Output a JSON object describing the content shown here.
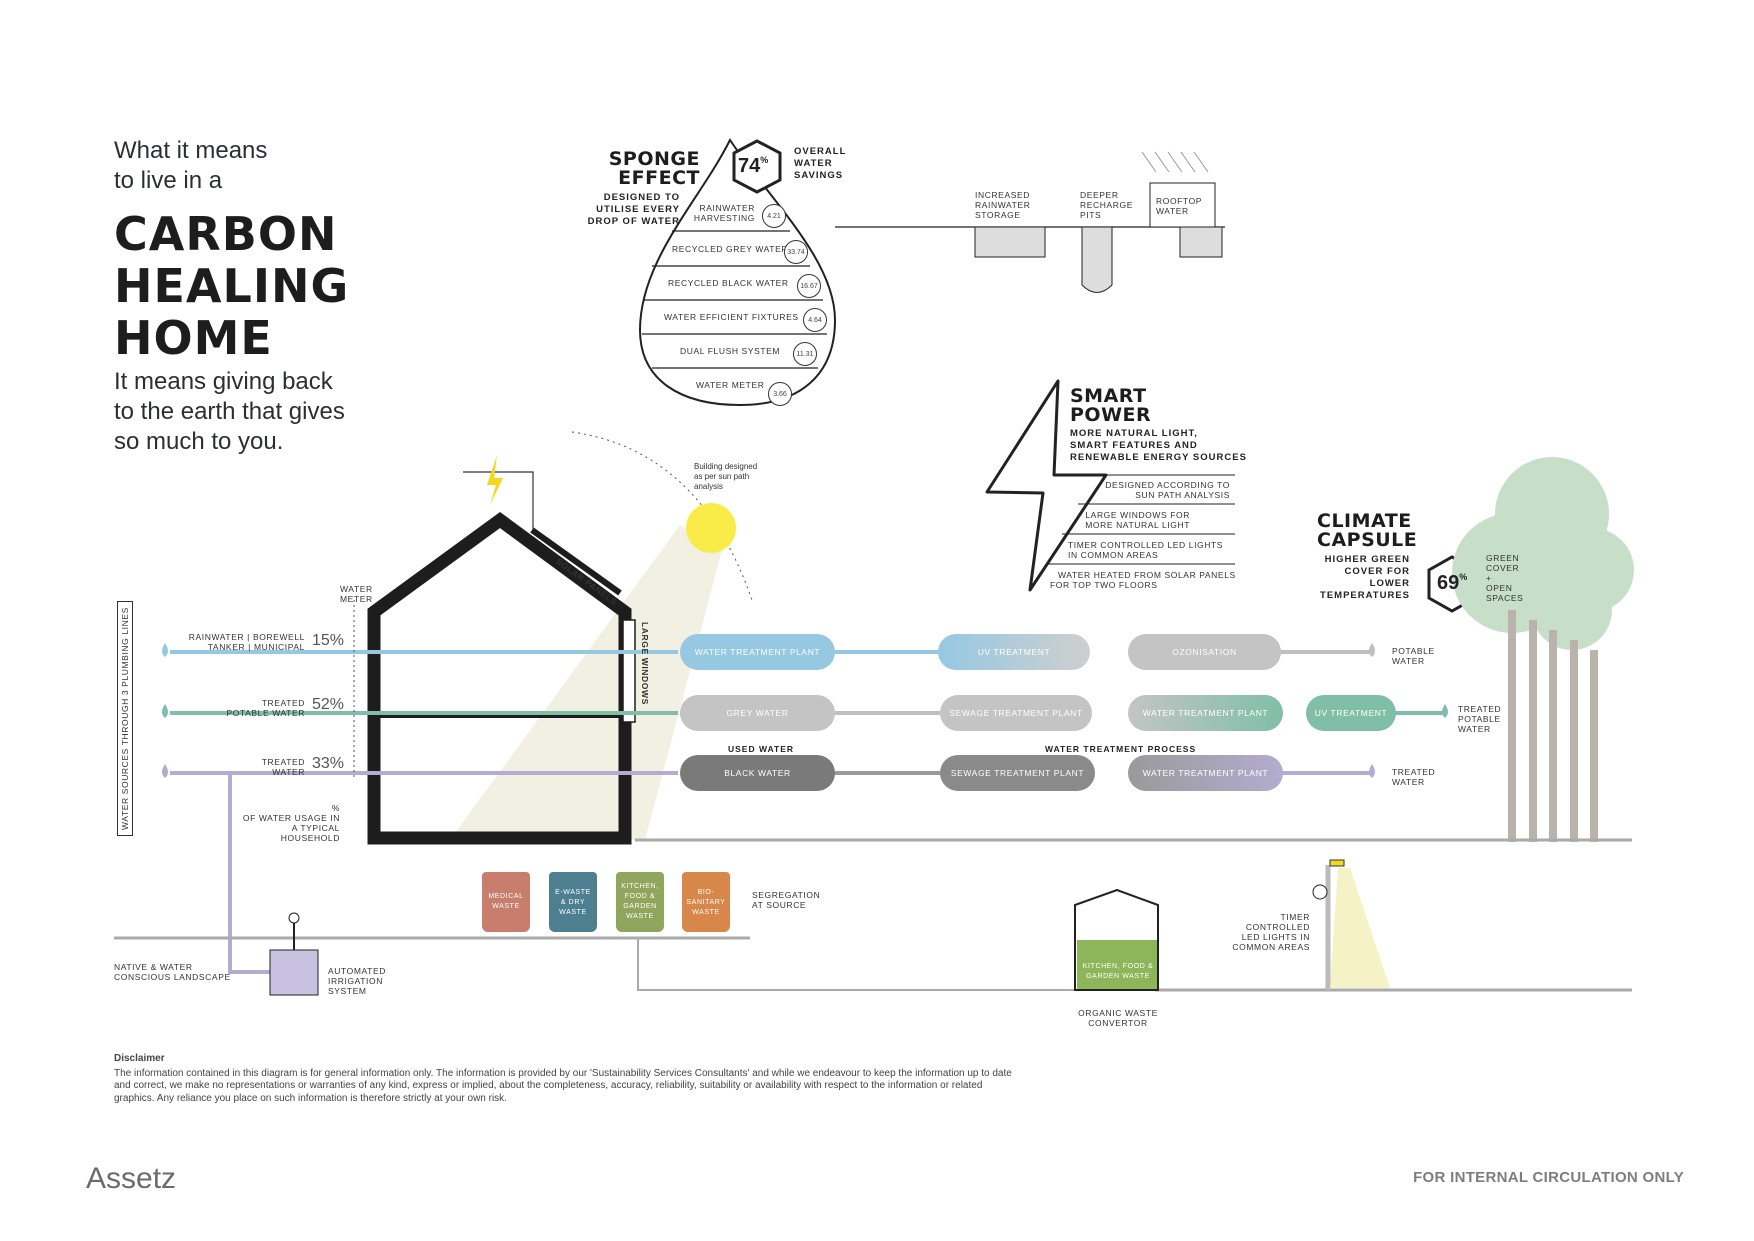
{
  "intro": {
    "line1": "What it means",
    "line2": "to live in a"
  },
  "title": {
    "line1": "CARBON",
    "line2": "HEALING",
    "line3": "HOME"
  },
  "tagline": {
    "line1": "It means giving back",
    "line2": "to the earth that gives",
    "line3": "so much to you."
  },
  "sponge": {
    "title1": "SPONGE",
    "title2": "EFFECT",
    "subtitle": [
      "DESIGNED TO",
      "UTILISE EVERY",
      "DROP OF WATER"
    ],
    "percent": "74",
    "percent_sign": "%",
    "savings": [
      "OVERALL",
      "WATER",
      "SAVINGS"
    ],
    "items": [
      {
        "label": "RAINWATER HARVESTING",
        "value": "4.21"
      },
      {
        "label": "RECYCLED GREY WATER",
        "value": "33.74"
      },
      {
        "label": "RECYCLED BLACK WATER",
        "value": "16.67"
      },
      {
        "label": "WATER EFFICIENT FIXTURES",
        "value": "4.64"
      },
      {
        "label": "DUAL FLUSH SYSTEM",
        "value": "11.31"
      },
      {
        "label": "WATER METER",
        "value": "3.66"
      }
    ],
    "pct_sign": "%"
  },
  "rain": {
    "storage": [
      "INCREASED",
      "RAINWATER",
      "STORAGE"
    ],
    "pits": [
      "DEEPER",
      "RECHARGE",
      "PITS"
    ],
    "rooftop": [
      "ROOFTOP",
      "WATER"
    ]
  },
  "smart": {
    "title1": "SMART",
    "title2": "POWER",
    "subtitle": [
      "MORE NATURAL LIGHT,",
      "SMART FEATURES AND",
      "RENEWABLE ENERGY SOURCES"
    ],
    "items": [
      [
        "DESIGNED ACCORDING TO",
        "SUN PATH ANALYSIS"
      ],
      [
        "LARGE WINDOWS FOR",
        "MORE NATURAL LIGHT"
      ],
      [
        "TIMER CONTROLLED LED LIGHTS",
        "IN COMMON AREAS"
      ],
      [
        "WATER HEATED FROM SOLAR PANELS",
        "FOR TOP TWO FLOORS"
      ]
    ]
  },
  "climate": {
    "title1": "CLIMATE",
    "title2": "CAPSULE",
    "subtitle": [
      "HIGHER GREEN",
      "COVER FOR",
      "LOWER",
      "TEMPERATURES"
    ],
    "percent": "69",
    "percent_sign": "%",
    "cover": [
      "GREEN",
      "COVER",
      "+",
      "OPEN",
      "SPACES"
    ]
  },
  "house": {
    "sun_note": [
      "Building designed",
      "as per sun path",
      "analysis"
    ],
    "solar_panels": "SOLAR PANELS",
    "large_windows": "LARGE WINDOWS",
    "water_meter": [
      "WATER",
      "METER"
    ]
  },
  "plumbing": {
    "side_label": "WATER SOURCES THROUGH 3 PLUMBING LINES",
    "lines": [
      {
        "source": [
          "RAINWATER | BOREWELL",
          "TANKER | MUNICIPAL"
        ],
        "pct": "15%"
      },
      {
        "source": [
          "TREATED",
          "POTABLE WATER"
        ],
        "pct": "52%"
      },
      {
        "source": [
          "TREATED",
          "WATER"
        ],
        "pct": "33%"
      }
    ],
    "usage_note": [
      "%",
      "OF WATER USAGE IN",
      "A TYPICAL HOUSEHOLD"
    ]
  },
  "process": {
    "row1": [
      "WATER TREATMENT PLANT",
      "UV TREATMENT",
      "OZONISATION"
    ],
    "row2": [
      "GREY WATER",
      "SEWAGE TREATMENT PLANT",
      "WATER TREATMENT PLANT",
      "UV TREATMENT"
    ],
    "row3": [
      "BLACK WATER",
      "SEWAGE TREATMENT PLANT",
      "WATER TREATMENT PLANT"
    ],
    "used_water": "USED WATER",
    "treatment_process": "WATER TREATMENT PROCESS",
    "out1": [
      "POTABLE",
      "WATER"
    ],
    "out2": [
      "TREATED",
      "POTABLE",
      "WATER"
    ],
    "out3": [
      "TREATED",
      "WATER"
    ]
  },
  "bins": {
    "items": [
      {
        "label": [
          "MEDICAL",
          "WASTE"
        ],
        "color": "#c97d6c"
      },
      {
        "label": [
          "E-WASTE",
          "& DRY",
          "WASTE"
        ],
        "color": "#4d7f91"
      },
      {
        "label": [
          "KITCHEN,",
          "FOOD &",
          "GARDEN",
          "WASTE"
        ],
        "color": "#8fa65c"
      },
      {
        "label": [
          "BIO-",
          "SANITARY",
          "WASTE"
        ],
        "color": "#d8874a"
      }
    ],
    "segregation": [
      "SEGREGATION",
      "AT SOURCE"
    ]
  },
  "landscape": {
    "native": [
      "NATIVE & WATER",
      "CONSCIOUS LANDSCAPE"
    ],
    "irrigation": [
      "AUTOMATED",
      "IRRIGATION",
      "SYSTEM"
    ]
  },
  "organic": {
    "tank_label": [
      "KITCHEN, FOOD &",
      "GARDEN WASTE"
    ],
    "caption": [
      "ORGANIC WASTE",
      "CONVERTOR"
    ]
  },
  "lights": {
    "caption": [
      "TIMER",
      "CONTROLLED",
      "LED LIGHTS IN",
      "COMMON AREAS"
    ]
  },
  "disclaimer": {
    "title": "Disclaimer",
    "text": "The information contained in this diagram is for general information only. The information is provided by our 'Sustainability Services Consultants' and while we endeavour to keep the information up to date and correct, we make no representations or warranties of any kind, express or implied, about the completeness, accuracy, reliability, suitability or availability with respect to the information or related graphics. Any reliance you place on such information is therefore strictly at your own risk."
  },
  "footer": {
    "brand": "Assetz",
    "notice": "FOR INTERNAL CIRCULATION ONLY"
  },
  "colors": {
    "blue": "#96c8e2",
    "green": "#7fbfa8",
    "purple": "#b3acd0",
    "grey": "#bfbfbf",
    "dark": "#7a7a7a",
    "tree": "#c7dfc9"
  }
}
